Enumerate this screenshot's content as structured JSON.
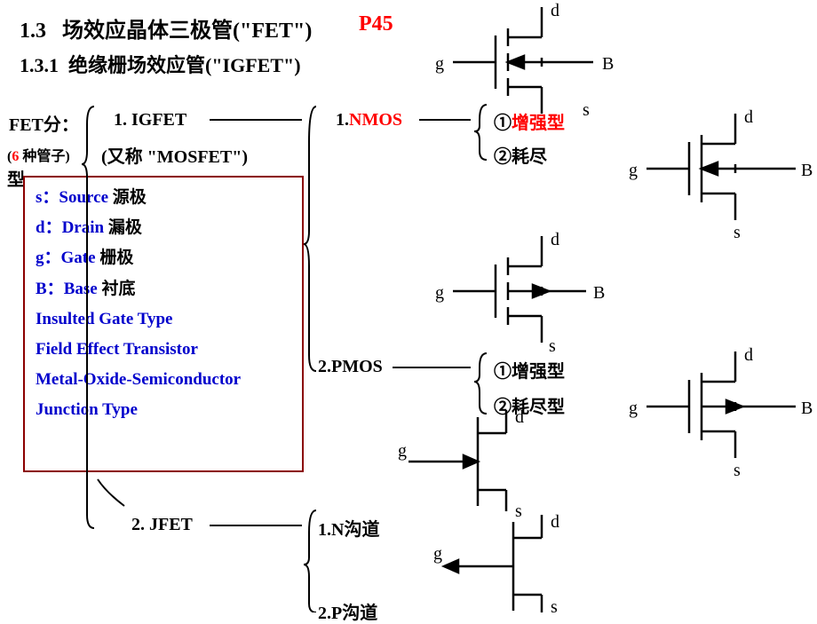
{
  "headings": {
    "h1_num": "1.3",
    "h1_txt": "场效应晶体三极管(\"FET\")",
    "h1_page": "P45",
    "h2_num": "1.3.1",
    "h2_txt": "绝缘栅场效应管(\"IGFET\")"
  },
  "labels": {
    "fet_split": "FET分：",
    "six_count_a": "(",
    "six_count_b": "6",
    "six_count_c": " 种管子)",
    "type_tail": "型",
    "igfet": "1. IGFET",
    "mosfet": "(又称 \"MOSFET\")",
    "jfet": "2. JFET",
    "nmos_num": "1.",
    "nmos_txt": "NMOS",
    "pmos": "2.PMOS",
    "enh": "①增强型",
    "dep_short": "②耗尽",
    "enh2": "①增强型",
    "dep": "②耗尽型",
    "nch": "1.N沟道",
    "pch": "2.P沟道"
  },
  "glossary": {
    "s_k": "s：",
    "s_e": "Source",
    "s_c": "  源极",
    "d_k": "d：",
    "d_e": "Drain",
    "d_c": "   漏极",
    "g_k": "g：",
    "g_e": "Gate",
    "g_c": "    栅极",
    "b_k": "B：",
    "b_e": "Base",
    "b_c": "    衬底",
    "t1": "Insulted Gate Type",
    "t2": "Field Effect Transistor",
    "t3": "Metal-Oxide-Semiconductor",
    "t4": "Junction Type"
  },
  "pins": {
    "d": "d",
    "g": "g",
    "s": "s",
    "b": "B"
  },
  "style": {
    "stroke": "#000000",
    "box_stroke": "#8b0000",
    "stroke_w": 2
  }
}
